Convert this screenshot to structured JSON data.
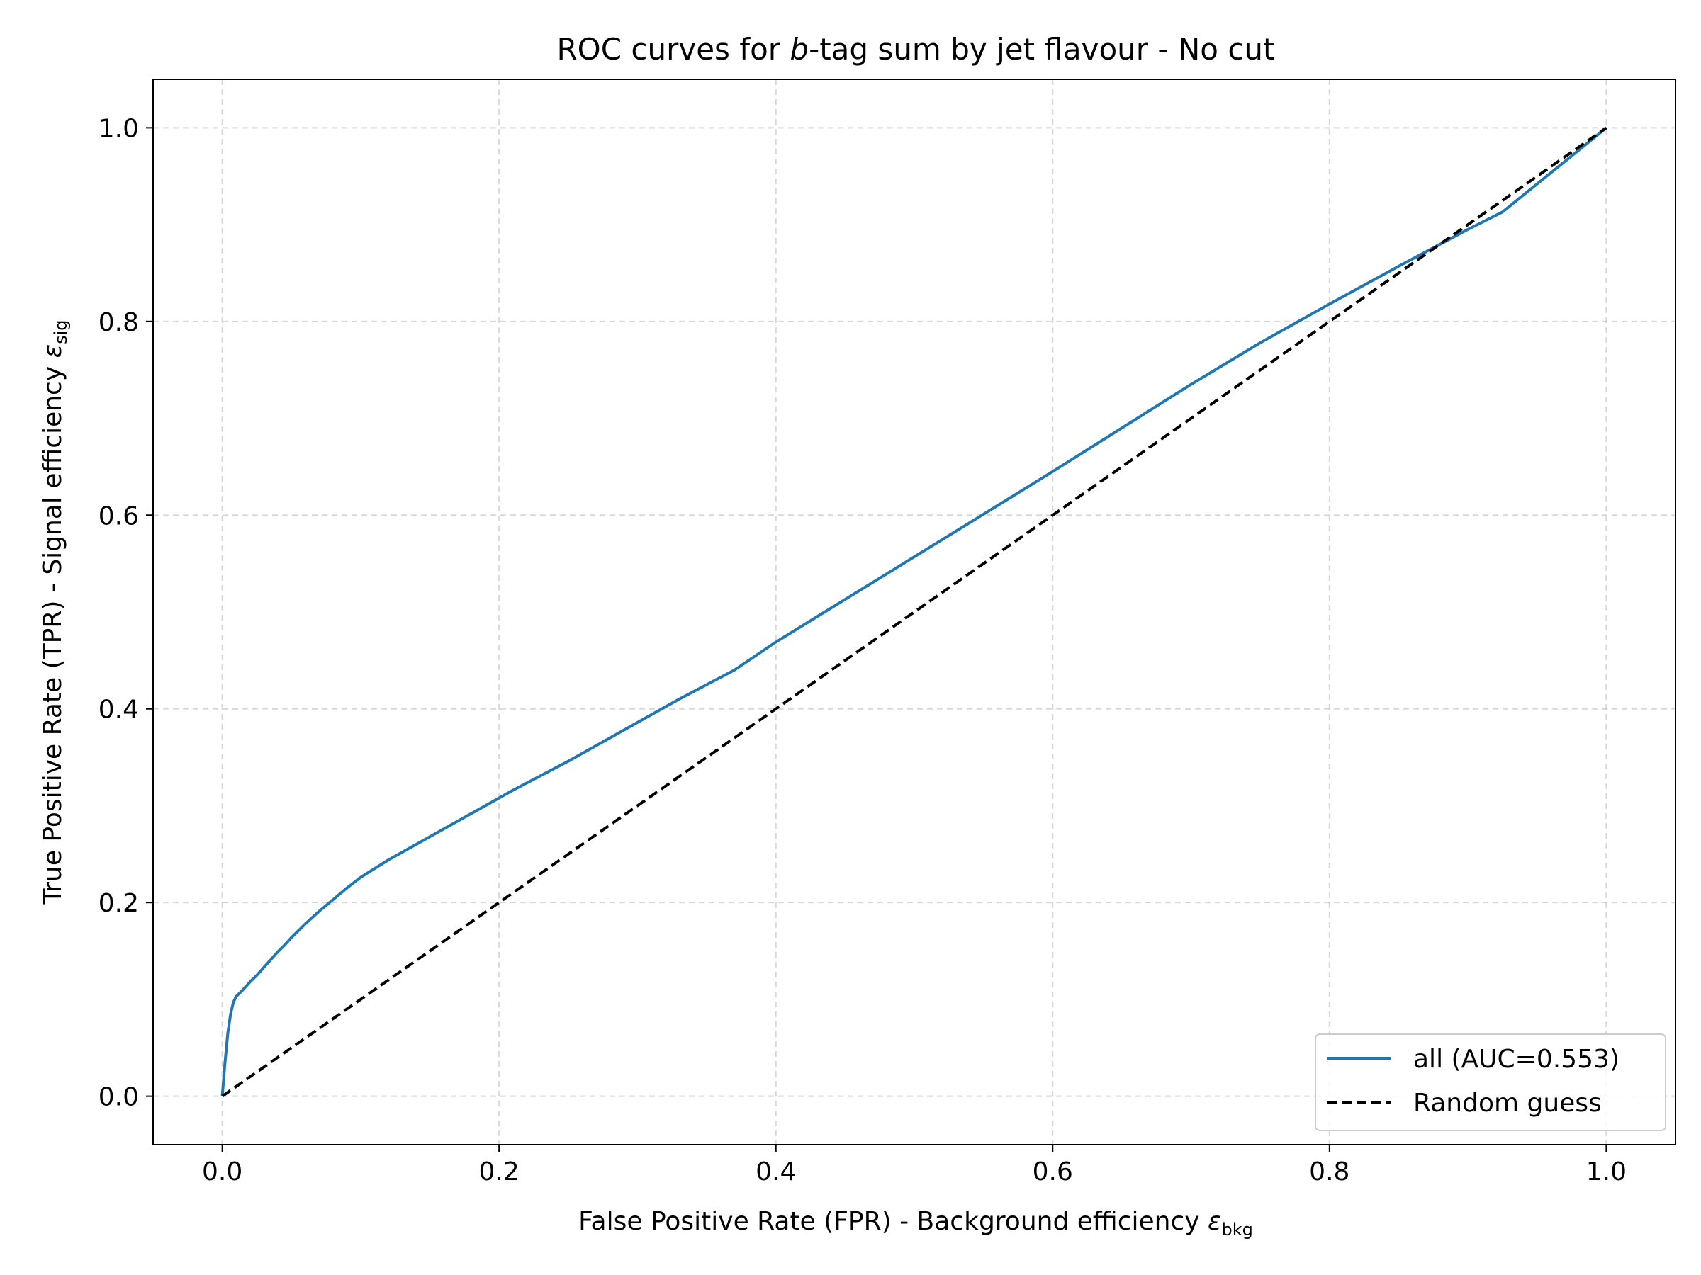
{
  "chart_data": {
    "type": "line",
    "title": {
      "prefix": "ROC curves for ",
      "italic": "b",
      "suffix": "-tag sum by jet flavour - No cut"
    },
    "xlabel": {
      "text": "False Positive Rate (FPR) - Background efficiency ",
      "symbol": "ε",
      "subscript": "bkg"
    },
    "ylabel": {
      "text": "True Positive Rate (TPR) - Signal efficiency ",
      "symbol": "ε",
      "subscript": "sig"
    },
    "xlim": [
      -0.05,
      1.05
    ],
    "ylim": [
      -0.05,
      1.05
    ],
    "xticks": [
      0.0,
      0.2,
      0.4,
      0.6,
      0.8,
      1.0
    ],
    "xtick_labels": [
      "0.0",
      "0.2",
      "0.4",
      "0.6",
      "0.8",
      "1.0"
    ],
    "yticks": [
      0.0,
      0.2,
      0.4,
      0.6,
      0.8,
      1.0
    ],
    "ytick_labels": [
      "0.0",
      "0.2",
      "0.4",
      "0.6",
      "0.8",
      "1.0"
    ],
    "grid": true,
    "legend_position": "lower-right",
    "series": [
      {
        "name": "all (AUC=0.553)",
        "color": "#1f77b4",
        "style": "solid",
        "x": [
          0.0,
          0.002,
          0.004,
          0.006,
          0.008,
          0.01,
          0.015,
          0.02,
          0.025,
          0.03,
          0.035,
          0.04,
          0.045,
          0.05,
          0.06,
          0.07,
          0.08,
          0.09,
          0.1,
          0.11,
          0.12,
          0.13,
          0.15,
          0.17,
          0.19,
          0.21,
          0.23,
          0.25,
          0.27,
          0.3,
          0.33,
          0.37,
          0.4,
          0.45,
          0.5,
          0.55,
          0.6,
          0.65,
          0.7,
          0.75,
          0.8,
          0.85,
          0.9,
          0.925,
          0.95,
          1.0
        ],
        "y": [
          0.0,
          0.035,
          0.065,
          0.085,
          0.097,
          0.103,
          0.11,
          0.118,
          0.125,
          0.133,
          0.141,
          0.149,
          0.156,
          0.164,
          0.178,
          0.191,
          0.203,
          0.215,
          0.226,
          0.235,
          0.244,
          0.252,
          0.268,
          0.284,
          0.3,
          0.316,
          0.331,
          0.346,
          0.362,
          0.386,
          0.41,
          0.44,
          0.469,
          0.513,
          0.557,
          0.601,
          0.645,
          0.69,
          0.735,
          0.778,
          0.818,
          0.857,
          0.895,
          0.913,
          0.942,
          1.0
        ]
      },
      {
        "name": "Random guess",
        "color": "#000000",
        "style": "dashed",
        "x": [
          0.0,
          1.0
        ],
        "y": [
          0.0,
          1.0
        ]
      }
    ]
  }
}
